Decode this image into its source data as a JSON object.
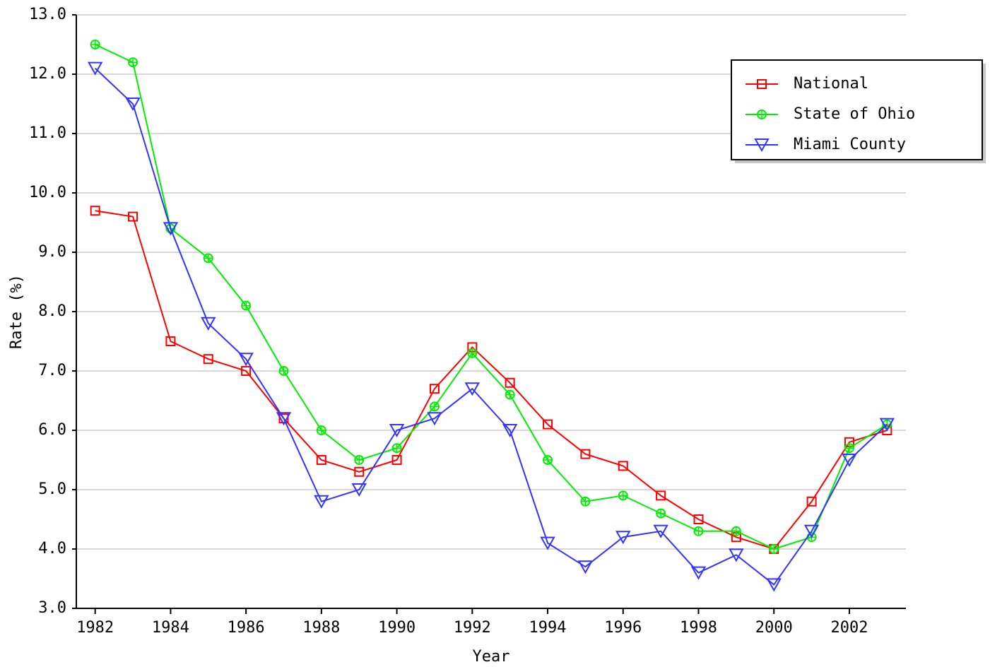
{
  "chart_data": {
    "type": "line",
    "x_label": "Year",
    "y_label": "Rate (%)",
    "x": [
      1982,
      1983,
      1984,
      1985,
      1986,
      1987,
      1988,
      1989,
      1990,
      1991,
      1992,
      1993,
      1994,
      1995,
      1996,
      1997,
      1998,
      1999,
      2000,
      2001,
      2002,
      2003
    ],
    "series": [
      {
        "name": "National",
        "color": "#ff0000",
        "marker": "square",
        "values": [
          9.7,
          9.6,
          7.5,
          7.2,
          7.0,
          6.2,
          5.5,
          5.3,
          5.5,
          6.7,
          7.4,
          6.8,
          6.1,
          5.6,
          5.4,
          4.9,
          4.5,
          4.2,
          4.0,
          4.8,
          5.8,
          6.0
        ]
      },
      {
        "name": "State of Ohio",
        "color": "#00ee00",
        "marker": "circle",
        "values": [
          12.5,
          12.2,
          9.4,
          8.9,
          8.1,
          7.0,
          6.0,
          5.5,
          5.7,
          6.4,
          7.3,
          6.6,
          5.5,
          4.8,
          4.9,
          4.6,
          4.3,
          4.3,
          4.0,
          4.2,
          5.7,
          6.1
        ]
      },
      {
        "name": "Miami County",
        "color": "#3333ff",
        "marker": "triangle-down",
        "values": [
          12.1,
          11.5,
          9.4,
          7.8,
          7.2,
          6.2,
          4.8,
          5.0,
          6.0,
          6.2,
          6.7,
          6.0,
          4.1,
          3.7,
          4.2,
          4.3,
          3.6,
          3.9,
          3.4,
          4.3,
          5.5,
          6.1
        ]
      }
    ],
    "xlim": [
      1981.5,
      2003.5
    ],
    "xticks": [
      1982,
      1984,
      1986,
      1988,
      1990,
      1992,
      1994,
      1996,
      1998,
      2000,
      2002
    ],
    "ylim": [
      3,
      13
    ],
    "yticks": [
      {
        "value": 3,
        "label": "3.0"
      },
      {
        "value": 4,
        "label": "4.0"
      },
      {
        "value": 5,
        "label": "5.0"
      },
      {
        "value": 6,
        "label": "6.0"
      },
      {
        "value": 7,
        "label": "7.0"
      },
      {
        "value": 8,
        "label": "8.0"
      },
      {
        "value": 9,
        "label": "9.0"
      },
      {
        "value": 10,
        "label": "10.0"
      },
      {
        "value": 11,
        "label": "11.0"
      },
      {
        "value": 12,
        "label": "12.0"
      },
      {
        "value": 13,
        "label": "13.0"
      }
    ],
    "grid": true,
    "legend": "top-right"
  }
}
